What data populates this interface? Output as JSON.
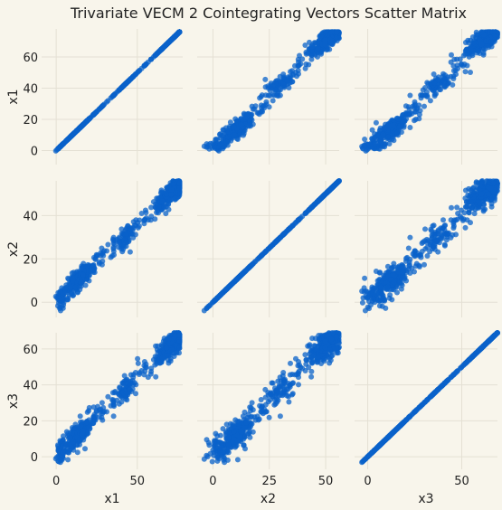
{
  "chart_data": {
    "type": "scatter-matrix",
    "title": "Trivariate VECM 2 Cointegrating Vectors Scatter Matrix",
    "variables": [
      "x1",
      "x2",
      "x3"
    ],
    "ranges": {
      "x1": [
        -9,
        78
      ],
      "x2": [
        -7,
        56
      ],
      "x3": [
        -7,
        69
      ]
    },
    "ticks": {
      "x1": [
        0,
        20,
        40,
        60
      ],
      "x1_bottom": [
        0,
        50
      ],
      "x2": [
        0,
        20,
        40
      ],
      "x2_bottom": [
        0,
        25,
        50
      ],
      "x3": [
        0,
        20,
        40,
        60
      ],
      "x3_bottom": [
        0,
        50
      ]
    },
    "point_color": "#0a61c9",
    "background_color": "#f8f5eb",
    "grid_color": "#e4e0d4",
    "n_points": 700,
    "grid": true,
    "diagonal": "identity-scatter"
  }
}
